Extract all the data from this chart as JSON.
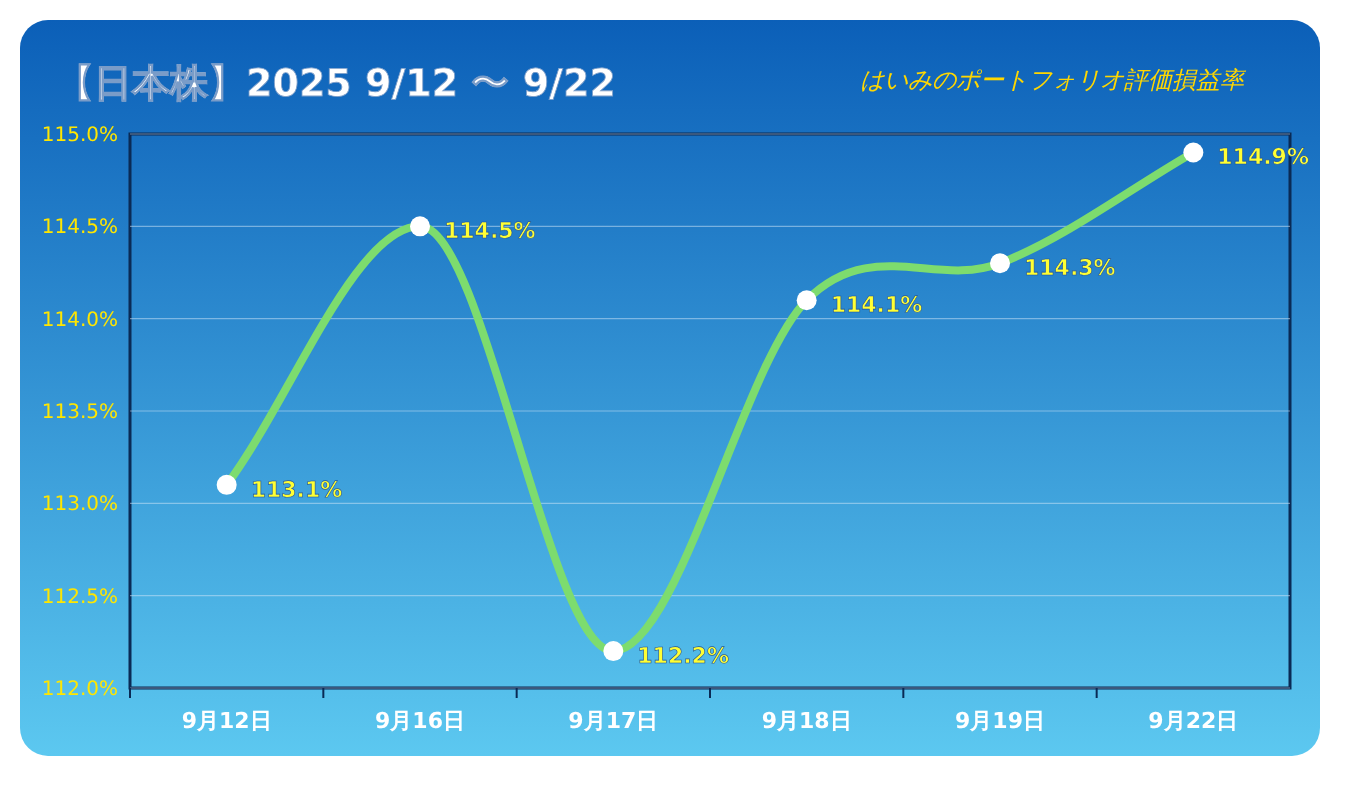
{
  "chart_data": {
    "type": "line",
    "title": "【日本株】2025 9/12 〜 9/22",
    "subtitle": "はいみのポートフォリオ評価損益率",
    "categories": [
      "9月12日",
      "9月16日",
      "9月17日",
      "9月18日",
      "9月19日",
      "9月22日"
    ],
    "series": [
      {
        "color": "#7ddc6e",
        "values": [
          113.1,
          114.5,
          112.2,
          114.1,
          114.3,
          114.9
        ]
      }
    ],
    "value_labels": [
      "113.1%",
      "114.5%",
      "112.2%",
      "114.1%",
      "114.3%",
      "114.9%"
    ],
    "ylim": [
      112,
      115
    ],
    "yticks": [
      {
        "value": 112,
        "label": "112.0%"
      },
      {
        "value": 112.5,
        "label": "112.5%"
      },
      {
        "value": 113,
        "label": "113.0%"
      },
      {
        "value": 113.5,
        "label": "113.5%"
      },
      {
        "value": 114,
        "label": "114.0%"
      },
      {
        "value": 114.5,
        "label": "114.5%"
      },
      {
        "value": 115,
        "label": "115.0%"
      }
    ],
    "grid": "y",
    "marker": "circle",
    "line_style": "solid"
  }
}
